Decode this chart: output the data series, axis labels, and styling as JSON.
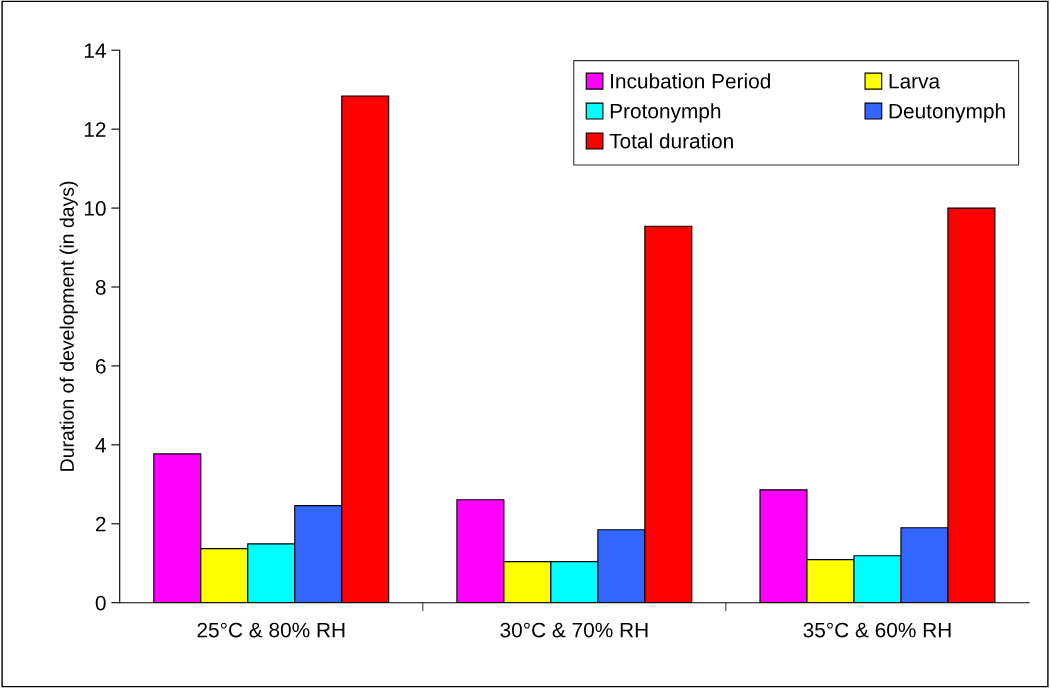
{
  "chart_data": {
    "type": "bar",
    "ylabel": "Duration of development (in days)",
    "categories": [
      "25°C & 80% RH",
      "30°C & 70% RH",
      "35°C & 60% RH"
    ],
    "series": [
      {
        "name": "Incubation Period",
        "color": "#ff00ff",
        "values": [
          3.77,
          2.61,
          2.86
        ]
      },
      {
        "name": "Larva",
        "color": "#ffff00",
        "values": [
          1.37,
          1.04,
          1.09
        ]
      },
      {
        "name": "Protonymph",
        "color": "#00ffff",
        "values": [
          1.49,
          1.04,
          1.19
        ]
      },
      {
        "name": "Deutonymph",
        "color": "#3366ff",
        "values": [
          2.46,
          1.85,
          1.9
        ]
      },
      {
        "name": "Total duration",
        "color": "#ff0000",
        "values": [
          12.84,
          9.54,
          10.0
        ]
      }
    ],
    "ylim": [
      0,
      14
    ],
    "yticks": [
      0,
      2,
      4,
      6,
      8,
      10,
      12,
      14
    ],
    "grid": false,
    "legend": "top right"
  }
}
